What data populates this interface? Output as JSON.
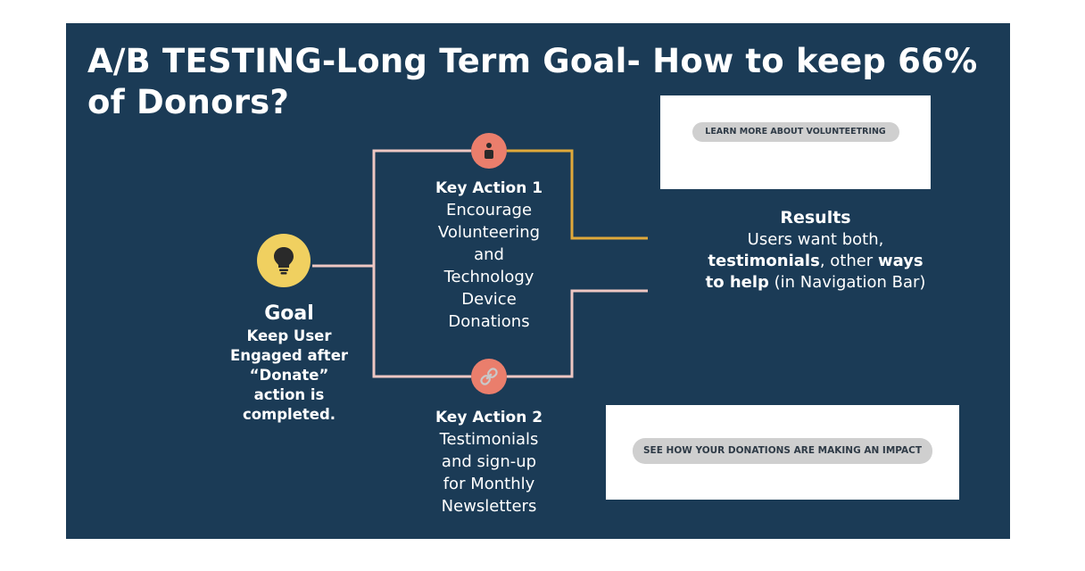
{
  "slide": {
    "title": "A/B TESTING-Long Term Goal- How to keep 66% of Donors?"
  },
  "goal": {
    "icon": "lightbulb-icon",
    "title": "Goal",
    "description_lines": [
      "Keep User",
      "Engaged after",
      "“Donate”",
      "action is",
      "completed."
    ]
  },
  "key_action_1": {
    "icon": "person-icon",
    "title": "Key Action 1",
    "description_lines": [
      "Encourage",
      "Volunteering",
      "and",
      "Technology",
      "Device",
      "Donations"
    ]
  },
  "key_action_2": {
    "icon": "link-icon",
    "title": "Key Action 2",
    "description_lines": [
      "Testimonials",
      "and sign-up",
      "for Monthly",
      "Newsletters"
    ]
  },
  "results": {
    "title": "Results",
    "line1": "Users want both,",
    "line2_bold": "testimonials",
    "line2_normal": ", other ",
    "line2_bold2": "ways",
    "line3_bold": "to help",
    "line3_normal": " (in Navigation  Bar)"
  },
  "screenshots": {
    "volunteer_button": "LEARN MORE ABOUT VOLUNTEETRING",
    "impact_button": "SEE HOW YOUR DONATIONS ARE MAKING AN IMPACT"
  },
  "colors": {
    "background": "#1b3b56",
    "goal_circle": "#f0d060",
    "action_circle": "#ea7e6c",
    "connector_pink": "#eec7c3",
    "connector_gold": "#e0a93a"
  }
}
